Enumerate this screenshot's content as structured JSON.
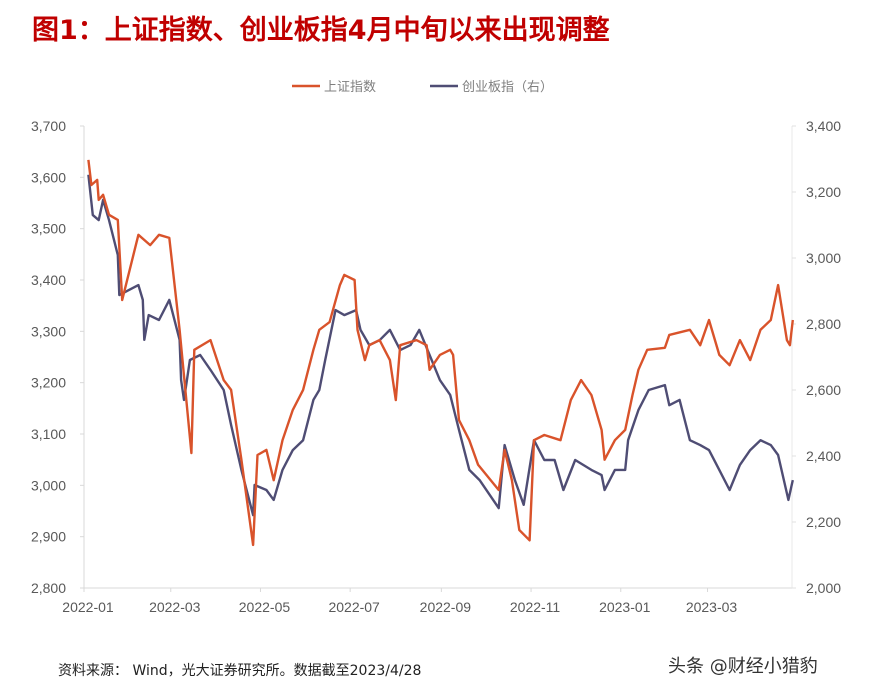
{
  "title": "图1：上证指数、创业板指4月中旬以来出现调整",
  "source": "资料来源： Wind，光大证券研究所。数据截至2023/4/28",
  "watermark": "头条 @财经小猎豹",
  "chart_data": {
    "type": "line",
    "title": "图1：上证指数、创业板指4月中旬以来出现调整",
    "legend_position": "top",
    "grid": false,
    "x_ticks": [
      "2022-01",
      "2022-03",
      "2022-05",
      "2022-07",
      "2022-09",
      "2022-11",
      "2023-01",
      "2023-03"
    ],
    "y_left": {
      "range": [
        2800,
        3700
      ],
      "ticks": [
        "2,800",
        "2,900",
        "3,000",
        "3,100",
        "3,200",
        "3,300",
        "3,400",
        "3,500",
        "3,600",
        "3,700"
      ]
    },
    "y_right": {
      "range": [
        2000,
        3400
      ],
      "ticks": [
        "2,000",
        "2,200",
        "2,400",
        "2,600",
        "2,800",
        "3,000",
        "3,200",
        "3,400"
      ]
    },
    "series": [
      {
        "name": "上证指数",
        "axis": "left",
        "color": "#d9532b",
        "points": [
          [
            "2022-01-04",
            3634
          ],
          [
            "2022-01-06",
            3585
          ],
          [
            "2022-01-10",
            3595
          ],
          [
            "2022-01-11",
            3556
          ],
          [
            "2022-01-14",
            3566
          ],
          [
            "2022-01-18",
            3527
          ],
          [
            "2022-01-24",
            3517
          ],
          [
            "2022-01-27",
            3361
          ],
          [
            "2022-02-07",
            3488
          ],
          [
            "2022-02-15",
            3468
          ],
          [
            "2022-02-21",
            3488
          ],
          [
            "2022-02-28",
            3482
          ],
          [
            "2022-03-07",
            3303
          ],
          [
            "2022-03-09",
            3244
          ],
          [
            "2022-03-15",
            3063
          ],
          [
            "2022-03-17",
            3264
          ],
          [
            "2022-03-28",
            3283
          ],
          [
            "2022-04-06",
            3205
          ],
          [
            "2022-04-11",
            3186
          ],
          [
            "2022-04-18",
            3050
          ],
          [
            "2022-04-26",
            2884
          ],
          [
            "2022-04-29",
            3059
          ],
          [
            "2022-05-05",
            3069
          ],
          [
            "2022-05-10",
            3010
          ],
          [
            "2022-05-16",
            3088
          ],
          [
            "2022-05-23",
            3147
          ],
          [
            "2022-05-30",
            3186
          ],
          [
            "2022-06-06",
            3264
          ],
          [
            "2022-06-10",
            3303
          ],
          [
            "2022-06-17",
            3318
          ],
          [
            "2022-06-24",
            3390
          ],
          [
            "2022-06-27",
            3410
          ],
          [
            "2022-07-04",
            3400
          ],
          [
            "2022-07-06",
            3303
          ],
          [
            "2022-07-11",
            3244
          ],
          [
            "2022-07-14",
            3273
          ],
          [
            "2022-07-21",
            3283
          ],
          [
            "2022-07-28",
            3244
          ],
          [
            "2022-08-01",
            3166
          ],
          [
            "2022-08-04",
            3273
          ],
          [
            "2022-08-15",
            3283
          ],
          [
            "2022-08-22",
            3273
          ],
          [
            "2022-08-24",
            3225
          ],
          [
            "2022-08-31",
            3254
          ],
          [
            "2022-09-07",
            3264
          ],
          [
            "2022-09-09",
            3254
          ],
          [
            "2022-09-13",
            3127
          ],
          [
            "2022-09-20",
            3088
          ],
          [
            "2022-09-26",
            3040
          ],
          [
            "2022-10-10",
            2991
          ],
          [
            "2022-10-14",
            3069
          ],
          [
            "2022-10-19",
            3010
          ],
          [
            "2022-10-24",
            2913
          ],
          [
            "2022-10-31",
            2893
          ],
          [
            "2022-11-03",
            3088
          ],
          [
            "2022-11-10",
            3098
          ],
          [
            "2022-11-21",
            3088
          ],
          [
            "2022-11-28",
            3166
          ],
          [
            "2022-12-05",
            3205
          ],
          [
            "2022-12-12",
            3176
          ],
          [
            "2022-12-19",
            3108
          ],
          [
            "2022-12-21",
            3050
          ],
          [
            "2022-12-28",
            3088
          ],
          [
            "2023-01-04",
            3108
          ],
          [
            "2023-01-09",
            3176
          ],
          [
            "2023-01-13",
            3225
          ],
          [
            "2023-01-19",
            3264
          ],
          [
            "2023-01-31",
            3268
          ],
          [
            "2023-02-03",
            3293
          ],
          [
            "2023-02-17",
            3303
          ],
          [
            "2023-02-24",
            3273
          ],
          [
            "2023-03-02",
            3322
          ],
          [
            "2023-03-09",
            3254
          ],
          [
            "2023-03-16",
            3234
          ],
          [
            "2023-03-23",
            3283
          ],
          [
            "2023-03-30",
            3244
          ],
          [
            "2023-04-06",
            3303
          ],
          [
            "2023-04-13",
            3322
          ],
          [
            "2023-04-18",
            3390
          ],
          [
            "2023-04-24",
            3283
          ],
          [
            "2023-04-26",
            3273
          ],
          [
            "2023-04-28",
            3322
          ]
        ]
      },
      {
        "name": "创业板指（右）",
        "axis": "right",
        "color": "#4f4d74",
        "points": [
          [
            "2022-01-04",
            3252
          ],
          [
            "2022-01-07",
            3130
          ],
          [
            "2022-01-11",
            3115
          ],
          [
            "2022-01-14",
            3176
          ],
          [
            "2022-01-18",
            3115
          ],
          [
            "2022-01-24",
            3009
          ],
          [
            "2022-01-25",
            2888
          ],
          [
            "2022-02-07",
            2918
          ],
          [
            "2022-02-10",
            2873
          ],
          [
            "2022-02-11",
            2752
          ],
          [
            "2022-02-14",
            2827
          ],
          [
            "2022-02-21",
            2812
          ],
          [
            "2022-02-28",
            2873
          ],
          [
            "2022-03-07",
            2752
          ],
          [
            "2022-03-08",
            2630
          ],
          [
            "2022-03-10",
            2570
          ],
          [
            "2022-03-14",
            2691
          ],
          [
            "2022-03-21",
            2706
          ],
          [
            "2022-03-28",
            2661
          ],
          [
            "2022-04-06",
            2600
          ],
          [
            "2022-04-11",
            2494
          ],
          [
            "2022-04-18",
            2358
          ],
          [
            "2022-04-26",
            2221
          ],
          [
            "2022-04-27",
            2312
          ],
          [
            "2022-05-05",
            2297
          ],
          [
            "2022-05-10",
            2267
          ],
          [
            "2022-05-16",
            2358
          ],
          [
            "2022-05-23",
            2418
          ],
          [
            "2022-05-30",
            2448
          ],
          [
            "2022-06-06",
            2570
          ],
          [
            "2022-06-10",
            2600
          ],
          [
            "2022-06-14",
            2691
          ],
          [
            "2022-06-21",
            2842
          ],
          [
            "2022-06-27",
            2827
          ],
          [
            "2022-07-05",
            2842
          ],
          [
            "2022-07-08",
            2782
          ],
          [
            "2022-07-14",
            2736
          ],
          [
            "2022-07-21",
            2751
          ],
          [
            "2022-07-28",
            2782
          ],
          [
            "2022-08-04",
            2721
          ],
          [
            "2022-08-11",
            2736
          ],
          [
            "2022-08-17",
            2782
          ],
          [
            "2022-08-24",
            2706
          ],
          [
            "2022-08-31",
            2630
          ],
          [
            "2022-09-07",
            2585
          ],
          [
            "2022-09-13",
            2479
          ],
          [
            "2022-09-20",
            2358
          ],
          [
            "2022-09-27",
            2327
          ],
          [
            "2022-10-10",
            2242
          ],
          [
            "2022-10-14",
            2433
          ],
          [
            "2022-10-21",
            2327
          ],
          [
            "2022-10-27",
            2252
          ],
          [
            "2022-11-03",
            2448
          ],
          [
            "2022-11-10",
            2388
          ],
          [
            "2022-11-17",
            2388
          ],
          [
            "2022-11-23",
            2297
          ],
          [
            "2022-12-01",
            2388
          ],
          [
            "2022-12-12",
            2358
          ],
          [
            "2022-12-19",
            2342
          ],
          [
            "2022-12-21",
            2297
          ],
          [
            "2022-12-28",
            2358
          ],
          [
            "2023-01-04",
            2358
          ],
          [
            "2023-01-06",
            2448
          ],
          [
            "2023-01-13",
            2539
          ],
          [
            "2023-01-20",
            2600
          ],
          [
            "2023-01-31",
            2615
          ],
          [
            "2023-02-03",
            2554
          ],
          [
            "2023-02-10",
            2570
          ],
          [
            "2023-02-17",
            2448
          ],
          [
            "2023-02-24",
            2433
          ],
          [
            "2023-03-02",
            2418
          ],
          [
            "2023-03-09",
            2358
          ],
          [
            "2023-03-16",
            2297
          ],
          [
            "2023-03-23",
            2373
          ],
          [
            "2023-03-30",
            2418
          ],
          [
            "2023-04-06",
            2448
          ],
          [
            "2023-04-13",
            2433
          ],
          [
            "2023-04-18",
            2403
          ],
          [
            "2023-04-25",
            2267
          ],
          [
            "2023-04-28",
            2327
          ]
        ]
      }
    ]
  }
}
